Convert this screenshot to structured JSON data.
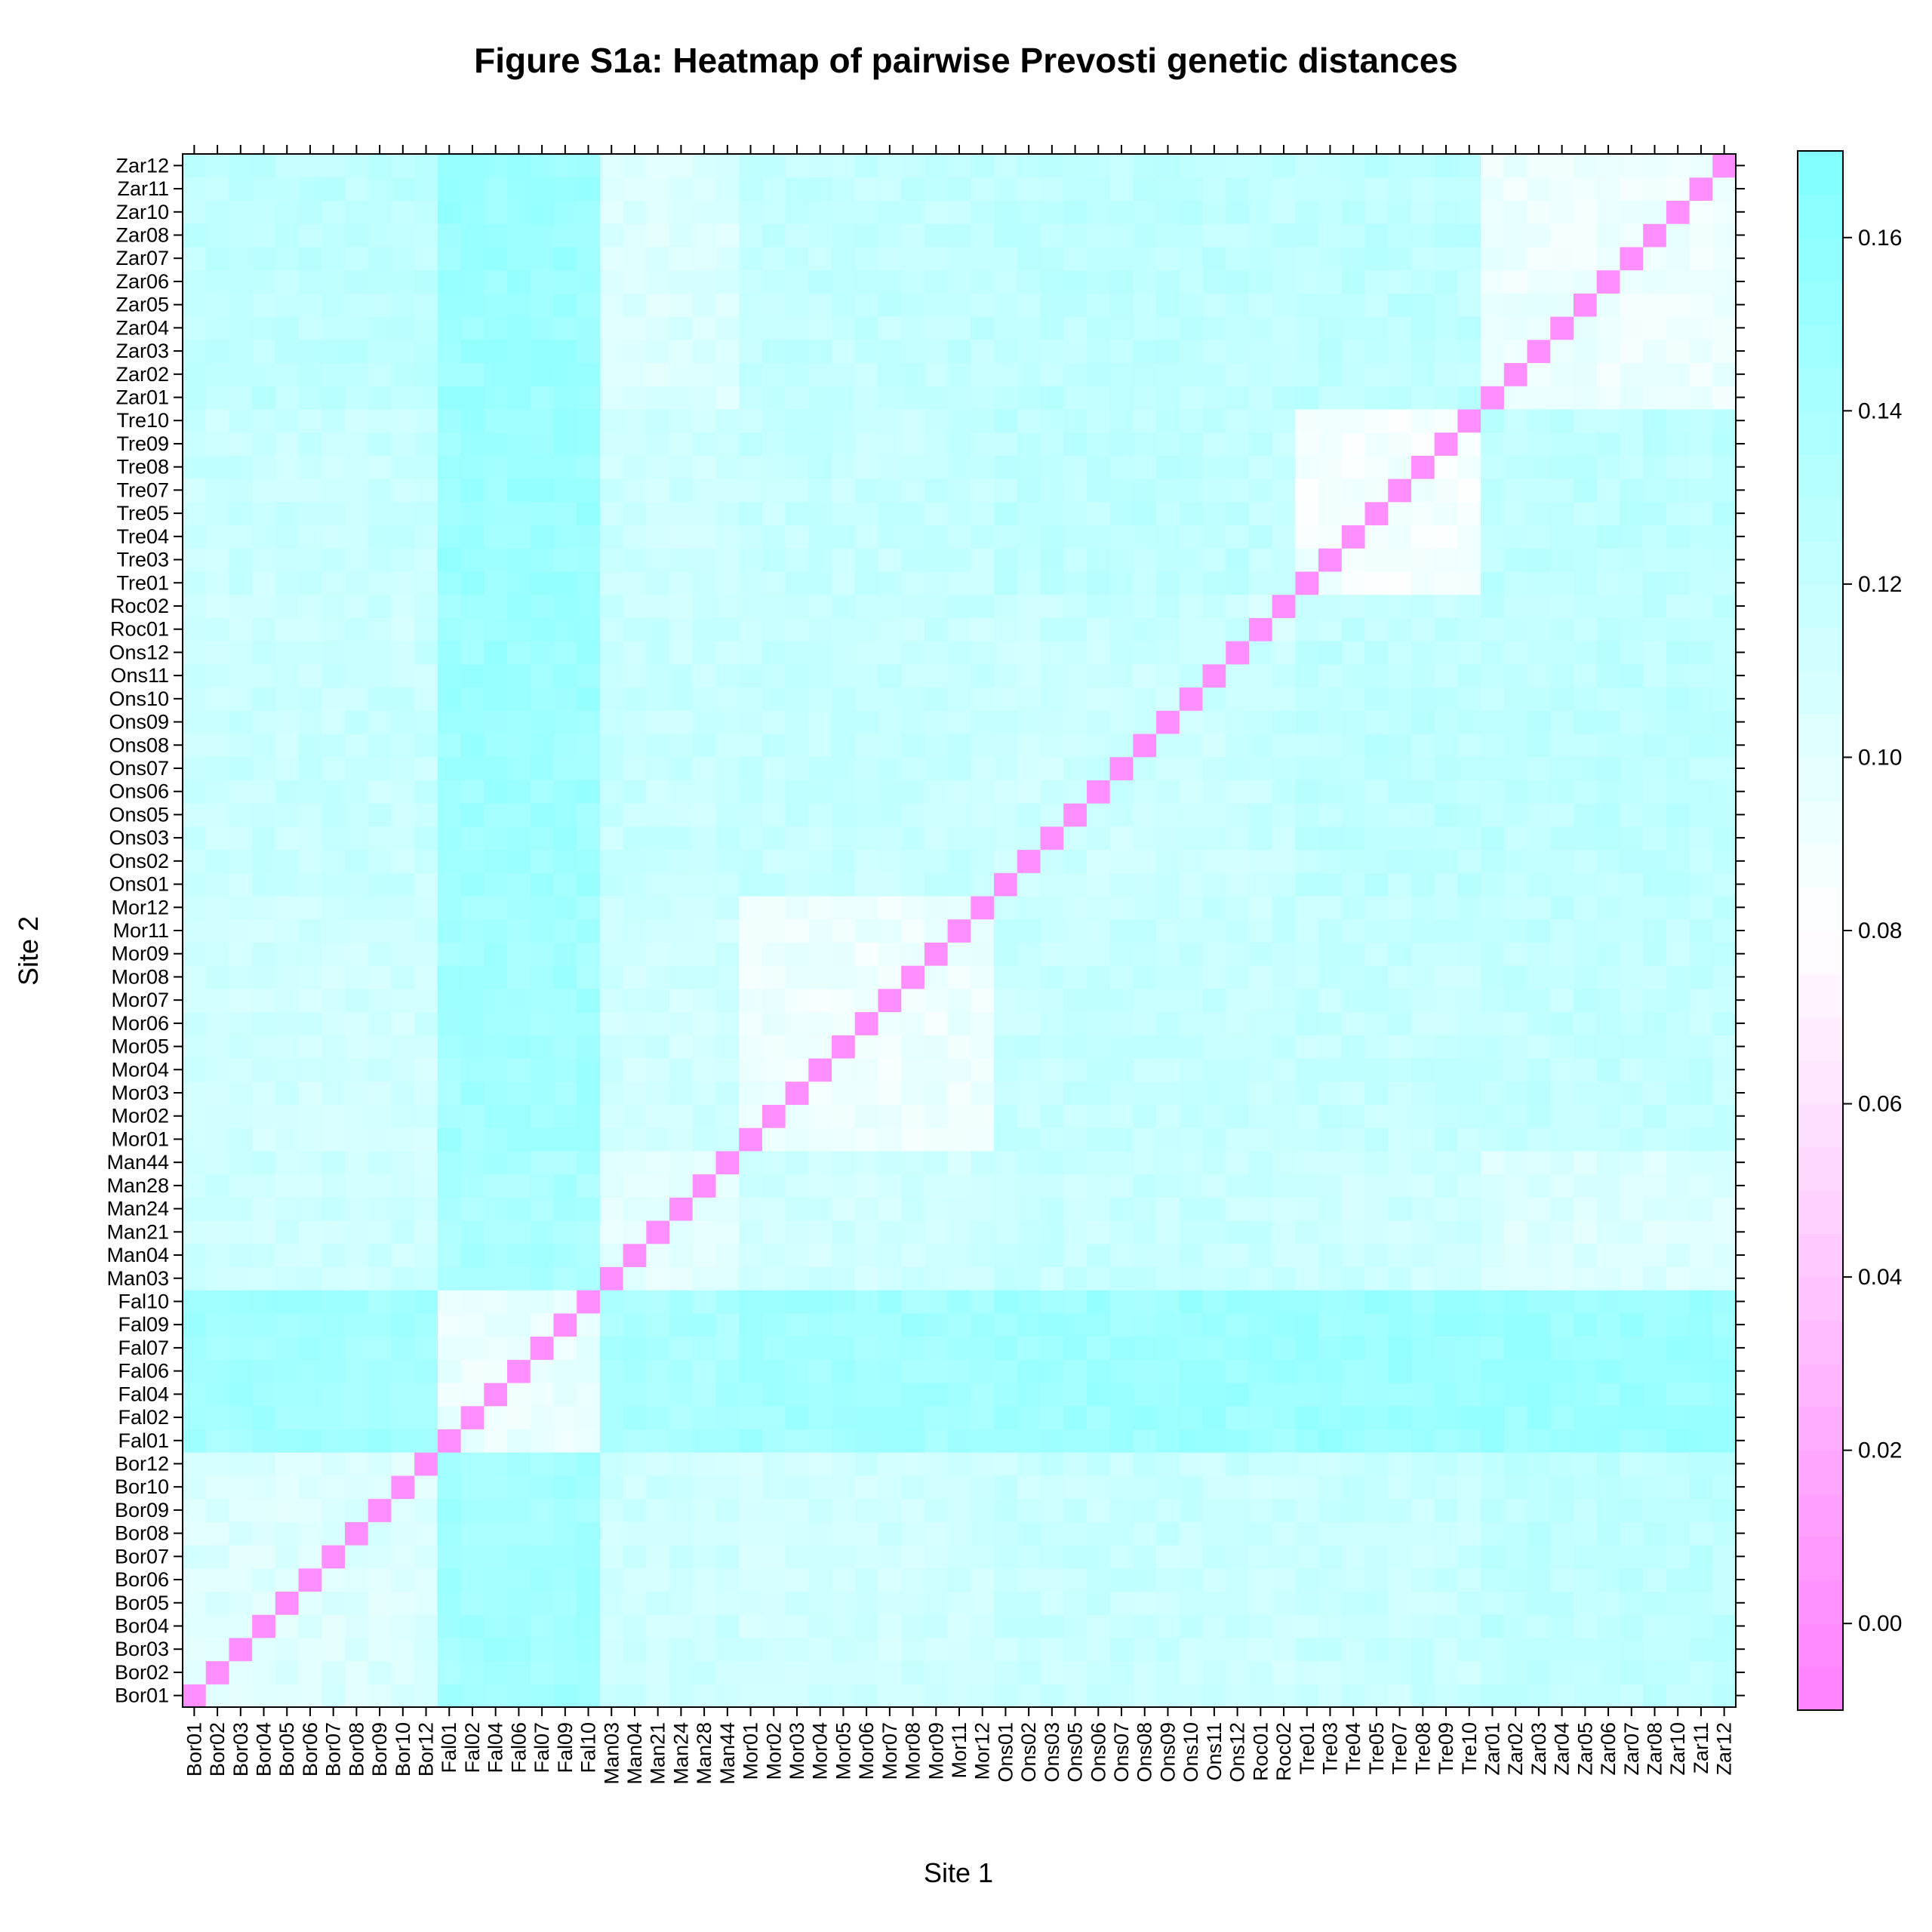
{
  "chart_data": {
    "type": "heatmap",
    "title": "Figure S1a: Heatmap of pairwise Prevosti genetic distances",
    "xlabel": "Site 1",
    "ylabel": "Site 2",
    "sites": [
      "Bor01",
      "Bor02",
      "Bor03",
      "Bor04",
      "Bor05",
      "Bor06",
      "Bor07",
      "Bor08",
      "Bor09",
      "Bor10",
      "Bor12",
      "Fal01",
      "Fal02",
      "Fal04",
      "Fal06",
      "Fal07",
      "Fal09",
      "Fal10",
      "Man03",
      "Man04",
      "Man21",
      "Man24",
      "Man28",
      "Man44",
      "Mor01",
      "Mor02",
      "Mor03",
      "Mor04",
      "Mor05",
      "Mor06",
      "Mor07",
      "Mor08",
      "Mor09",
      "Mor11",
      "Mor12",
      "Ons01",
      "Ons02",
      "Ons03",
      "Ons05",
      "Ons06",
      "Ons07",
      "Ons08",
      "Ons09",
      "Ons10",
      "Ons11",
      "Ons12",
      "Roc01",
      "Roc02",
      "Tre01",
      "Tre03",
      "Tre04",
      "Tre05",
      "Tre07",
      "Tre08",
      "Tre09",
      "Tre10",
      "Zar01",
      "Zar02",
      "Zar03",
      "Zar04",
      "Zar05",
      "Zar06",
      "Zar07",
      "Zar08",
      "Zar10",
      "Zar11",
      "Zar12"
    ],
    "groups": [
      {
        "prefix": "Bor",
        "count": 11
      },
      {
        "prefix": "Fal",
        "count": 7
      },
      {
        "prefix": "Man",
        "count": 6
      },
      {
        "prefix": "Mor",
        "count": 11
      },
      {
        "prefix": "Ons",
        "count": 11
      },
      {
        "prefix": "Roc",
        "count": 2
      },
      {
        "prefix": "Tre",
        "count": 8
      },
      {
        "prefix": "Zar",
        "count": 11
      }
    ],
    "diagonal_value": 0.0,
    "within_group_distance": {
      "Bor": 0.105,
      "Fal": 0.095,
      "Man": 0.1,
      "Mor": 0.092,
      "Ons": 0.115,
      "Roc": 0.11,
      "Tre": 0.088,
      "Zar": 0.093
    },
    "between_group_distance": [
      {
        "a": "Bor",
        "b": "Fal",
        "value": 0.145
      },
      {
        "a": "Bor",
        "b": "Man",
        "value": 0.115
      },
      {
        "a": "Bor",
        "b": "Mor",
        "value": 0.113
      },
      {
        "a": "Bor",
        "b": "Ons",
        "value": 0.118
      },
      {
        "a": "Bor",
        "b": "Roc",
        "value": 0.115
      },
      {
        "a": "Bor",
        "b": "Tre",
        "value": 0.118
      },
      {
        "a": "Bor",
        "b": "Zar",
        "value": 0.125
      },
      {
        "a": "Fal",
        "b": "Man",
        "value": 0.14
      },
      {
        "a": "Fal",
        "b": "Mor",
        "value": 0.145
      },
      {
        "a": "Fal",
        "b": "Ons",
        "value": 0.148
      },
      {
        "a": "Fal",
        "b": "Roc",
        "value": 0.147
      },
      {
        "a": "Fal",
        "b": "Tre",
        "value": 0.15
      },
      {
        "a": "Fal",
        "b": "Zar",
        "value": 0.15
      },
      {
        "a": "Man",
        "b": "Mor",
        "value": 0.113
      },
      {
        "a": "Man",
        "b": "Ons",
        "value": 0.118
      },
      {
        "a": "Man",
        "b": "Roc",
        "value": 0.117
      },
      {
        "a": "Man",
        "b": "Tre",
        "value": 0.115
      },
      {
        "a": "Man",
        "b": "Zar",
        "value": 0.105
      },
      {
        "a": "Mor",
        "b": "Ons",
        "value": 0.12
      },
      {
        "a": "Mor",
        "b": "Roc",
        "value": 0.118
      },
      {
        "a": "Mor",
        "b": "Tre",
        "value": 0.12
      },
      {
        "a": "Mor",
        "b": "Zar",
        "value": 0.122
      },
      {
        "a": "Ons",
        "b": "Roc",
        "value": 0.12
      },
      {
        "a": "Ons",
        "b": "Tre",
        "value": 0.125
      },
      {
        "a": "Ons",
        "b": "Zar",
        "value": 0.125
      },
      {
        "a": "Roc",
        "b": "Tre",
        "value": 0.122
      },
      {
        "a": "Roc",
        "b": "Zar",
        "value": 0.123
      },
      {
        "a": "Tre",
        "b": "Zar",
        "value": 0.125
      }
    ],
    "color_range": [
      -0.01,
      0.17
    ],
    "colorbar_ticks": [
      0.0,
      0.02,
      0.04,
      0.06,
      0.08,
      0.1,
      0.12,
      0.14,
      0.16
    ],
    "colorbar_tick_labels": [
      "0.00",
      "0.02",
      "0.04",
      "0.06",
      "0.08",
      "0.10",
      "0.12",
      "0.14",
      "0.16"
    ],
    "colors": {
      "low": "#ff80ff",
      "mid": "#ffffff",
      "high": "#80ffff"
    },
    "grid": false,
    "legend": "right"
  }
}
